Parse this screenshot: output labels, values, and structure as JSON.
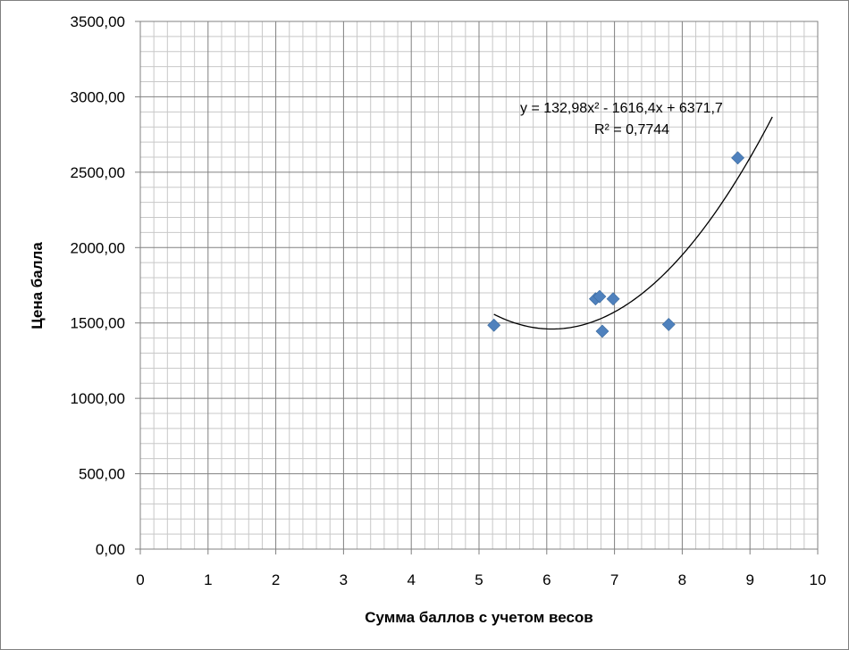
{
  "chart_data": {
    "type": "scatter",
    "xlabel": "Сумма баллов с учетом весов",
    "ylabel": "Цена балла",
    "xlim": [
      0,
      10
    ],
    "ylim": [
      0,
      3500
    ],
    "x_ticks": [
      "0",
      "1",
      "2",
      "3",
      "4",
      "5",
      "6",
      "7",
      "8",
      "9",
      "10"
    ],
    "y_ticks": [
      "0,00",
      "500,00",
      "1000,00",
      "1500,00",
      "2000,00",
      "2500,00",
      "3000,00",
      "3500,00"
    ],
    "grid": true,
    "series": [
      {
        "marker": "diamond",
        "color": "#4f81bd",
        "points": [
          {
            "x": 5.22,
            "y": 1485
          },
          {
            "x": 6.72,
            "y": 1660
          },
          {
            "x": 6.78,
            "y": 1675
          },
          {
            "x": 6.82,
            "y": 1445
          },
          {
            "x": 6.98,
            "y": 1660
          },
          {
            "x": 7.8,
            "y": 1490
          },
          {
            "x": 8.82,
            "y": 2595
          }
        ]
      }
    ],
    "trendline": {
      "type": "polynomial",
      "coefficients": [
        132.98,
        -1616.4,
        6371.7
      ],
      "x_range": [
        5.22,
        9.33
      ],
      "color": "#000000",
      "equation": "y = 132,98x² - 1616,4x + 6371,7",
      "r_squared": "R² = 0,7744"
    }
  }
}
